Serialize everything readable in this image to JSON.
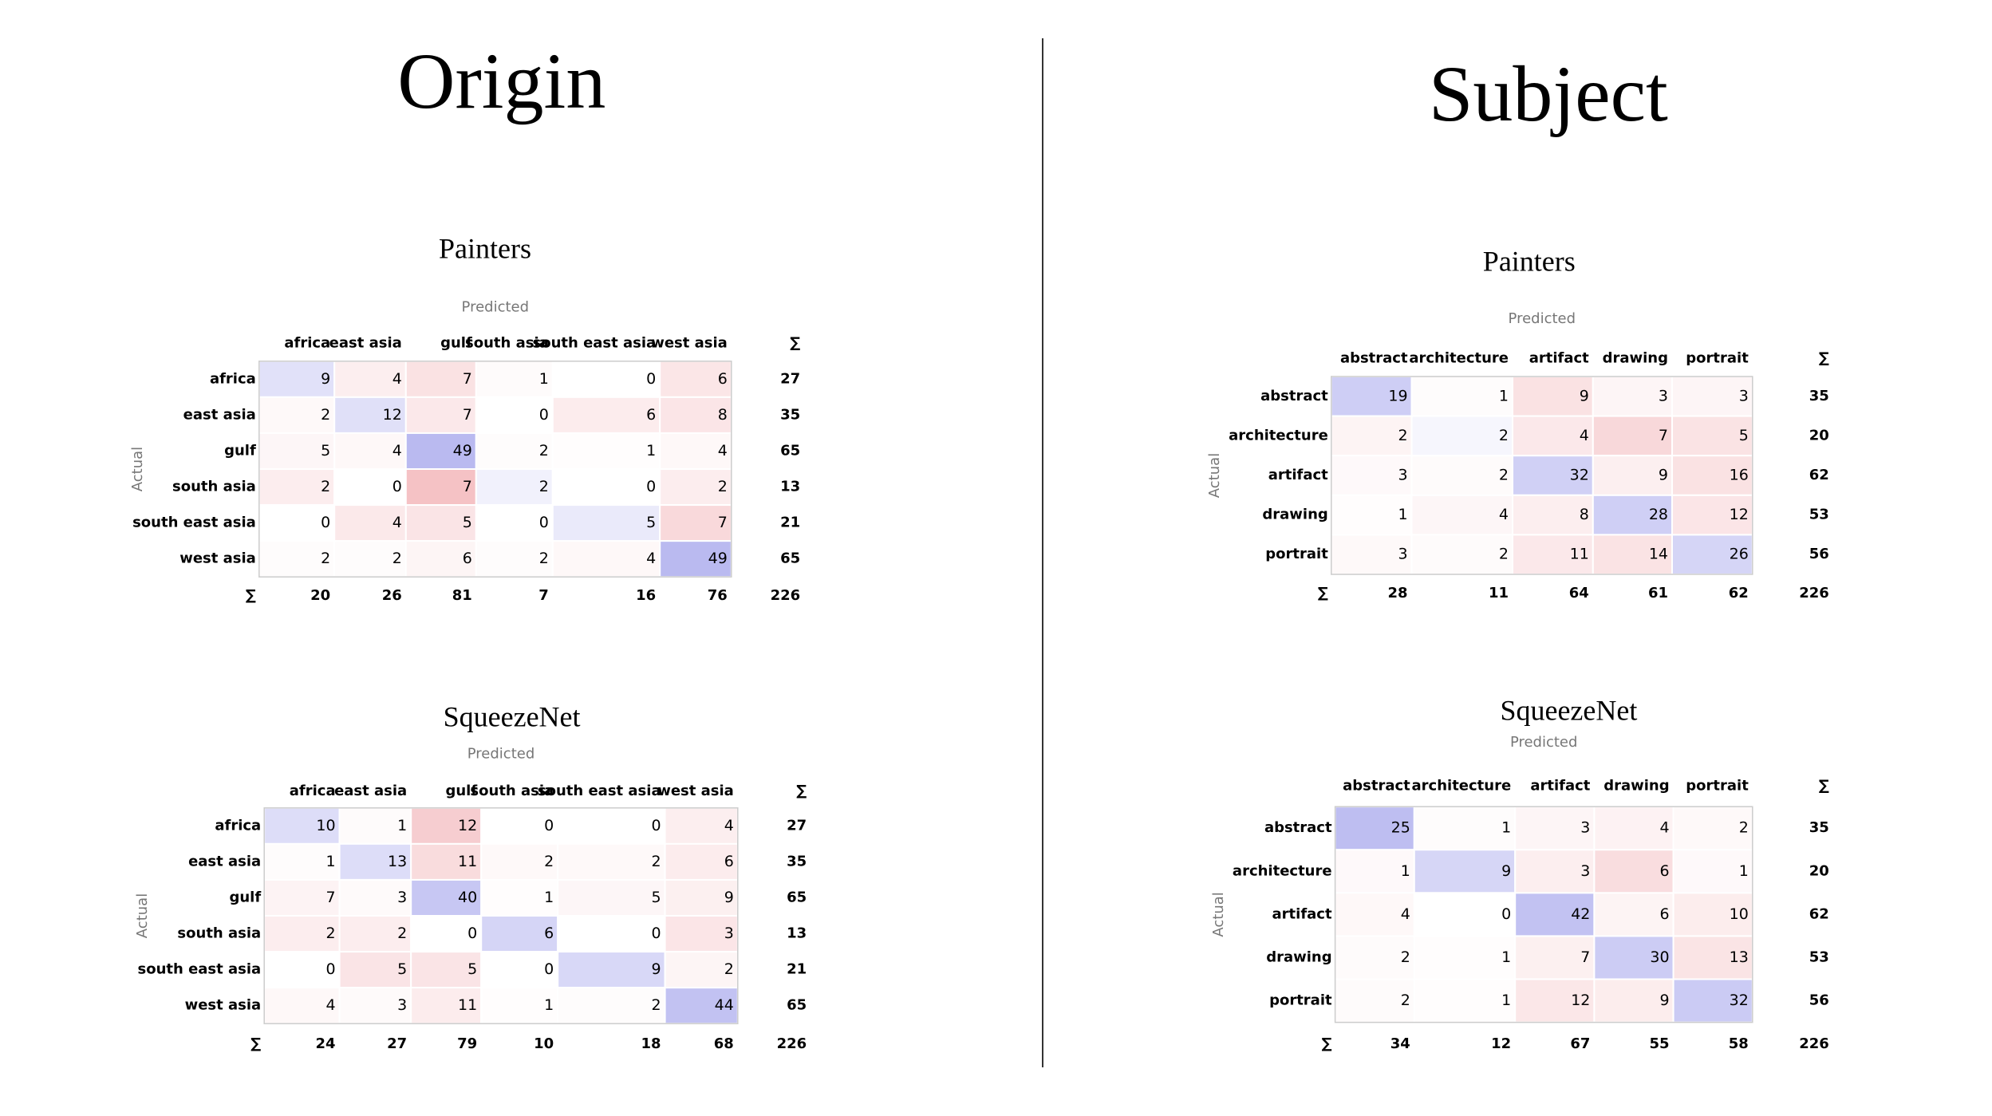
{
  "sections": [
    {
      "title": "Origin",
      "matrices": [
        {
          "title": "Painters",
          "predicted_label": "Predicted",
          "actual_label": "Actual",
          "sum_symbol": "∑",
          "columns": [
            "africa",
            "east asia",
            "gulf",
            "south asia",
            "south east asia",
            "west asia"
          ],
          "rows": [
            {
              "label": "africa",
              "values": [
                9,
                4,
                7,
                1,
                0,
                6
              ],
              "total": 27
            },
            {
              "label": "east asia",
              "values": [
                2,
                12,
                7,
                0,
                6,
                8
              ],
              "total": 35
            },
            {
              "label": "gulf",
              "values": [
                5,
                4,
                49,
                2,
                1,
                4
              ],
              "total": 65
            },
            {
              "label": "south asia",
              "values": [
                2,
                0,
                7,
                2,
                0,
                2
              ],
              "total": 13
            },
            {
              "label": "south east asia",
              "values": [
                0,
                4,
                5,
                0,
                5,
                7
              ],
              "total": 21
            },
            {
              "label": "west asia",
              "values": [
                2,
                2,
                6,
                2,
                4,
                49
              ],
              "total": 65
            }
          ],
          "column_totals": [
            20,
            26,
            81,
            7,
            16,
            76
          ],
          "grand_total": 226
        },
        {
          "title": "SqueezeNet",
          "predicted_label": "Predicted",
          "actual_label": "Actual",
          "sum_symbol": "∑",
          "columns": [
            "africa",
            "east asia",
            "gulf",
            "south asia",
            "south east asia",
            "west asia"
          ],
          "rows": [
            {
              "label": "africa",
              "values": [
                10,
                1,
                12,
                0,
                0,
                4
              ],
              "total": 27
            },
            {
              "label": "east asia",
              "values": [
                1,
                13,
                11,
                2,
                2,
                6
              ],
              "total": 35
            },
            {
              "label": "gulf",
              "values": [
                7,
                3,
                40,
                1,
                5,
                9
              ],
              "total": 65
            },
            {
              "label": "south asia",
              "values": [
                2,
                2,
                0,
                6,
                0,
                3
              ],
              "total": 13
            },
            {
              "label": "south east asia",
              "values": [
                0,
                5,
                5,
                0,
                9,
                2
              ],
              "total": 21
            },
            {
              "label": "west asia",
              "values": [
                4,
                3,
                11,
                1,
                2,
                44
              ],
              "total": 65
            }
          ],
          "column_totals": [
            24,
            27,
            79,
            10,
            18,
            68
          ],
          "grand_total": 226
        }
      ]
    },
    {
      "title": "Subject",
      "matrices": [
        {
          "title": "Painters",
          "predicted_label": "Predicted",
          "actual_label": "Actual",
          "sum_symbol": "∑",
          "columns": [
            "abstract",
            "architecture",
            "artifact",
            "drawing",
            "portrait"
          ],
          "rows": [
            {
              "label": "abstract",
              "values": [
                19,
                1,
                9,
                3,
                3
              ],
              "total": 35
            },
            {
              "label": "architecture",
              "values": [
                2,
                2,
                4,
                7,
                5
              ],
              "total": 20
            },
            {
              "label": "artifact",
              "values": [
                3,
                2,
                32,
                9,
                16
              ],
              "total": 62
            },
            {
              "label": "drawing",
              "values": [
                1,
                4,
                8,
                28,
                12
              ],
              "total": 53
            },
            {
              "label": "portrait",
              "values": [
                3,
                2,
                11,
                14,
                26
              ],
              "total": 56
            }
          ],
          "column_totals": [
            28,
            11,
            64,
            61,
            62
          ],
          "grand_total": 226
        },
        {
          "title": "SqueezeNet",
          "predicted_label": "Predicted",
          "actual_label": "Actual",
          "sum_symbol": "∑",
          "columns": [
            "abstract",
            "architecture",
            "artifact",
            "drawing",
            "portrait"
          ],
          "rows": [
            {
              "label": "abstract",
              "values": [
                25,
                1,
                3,
                4,
                2
              ],
              "total": 35
            },
            {
              "label": "architecture",
              "values": [
                1,
                9,
                3,
                6,
                1
              ],
              "total": 20
            },
            {
              "label": "artifact",
              "values": [
                4,
                0,
                42,
                6,
                10
              ],
              "total": 62
            },
            {
              "label": "drawing",
              "values": [
                2,
                1,
                7,
                30,
                13
              ],
              "total": 53
            },
            {
              "label": "portrait",
              "values": [
                2,
                1,
                12,
                9,
                32
              ],
              "total": 56
            }
          ],
          "column_totals": [
            34,
            12,
            67,
            55,
            58
          ],
          "grand_total": 226
        }
      ]
    }
  ]
}
